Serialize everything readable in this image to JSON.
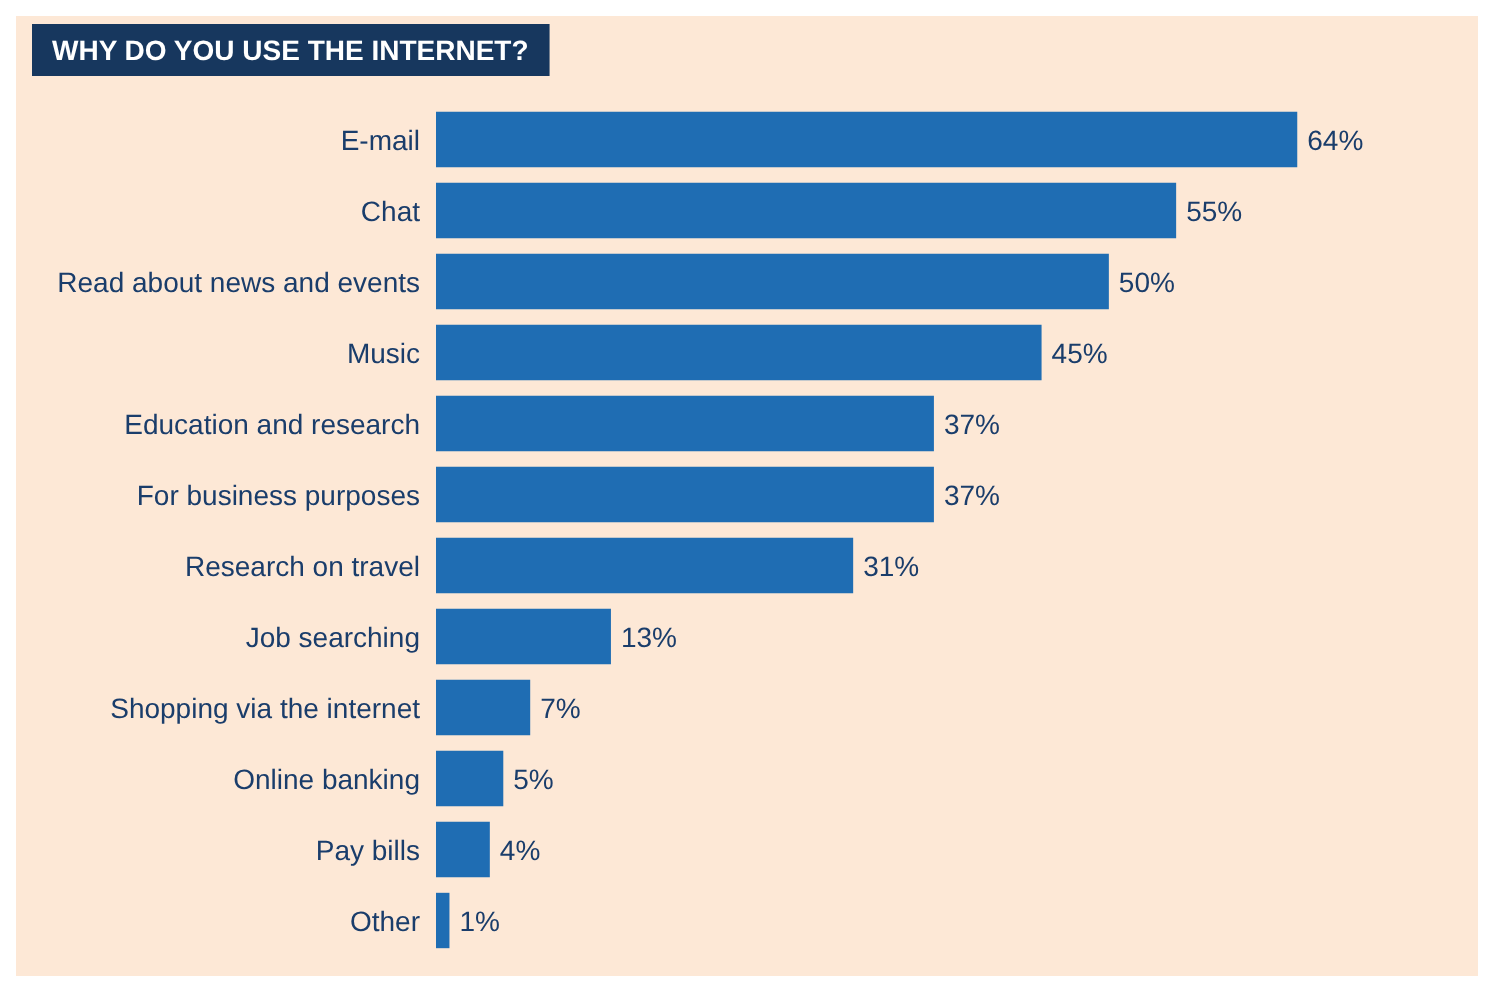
{
  "chart_data": {
    "type": "bar",
    "orientation": "horizontal",
    "title": "WHY DO YOU USE THE INTERNET?",
    "categories": [
      "E-mail",
      "Chat",
      "Read about news and events",
      "Music",
      "Education and research",
      "For business purposes",
      "Research on travel",
      "Job searching",
      "Shopping via the internet",
      "Online banking",
      "Pay bills",
      "Other"
    ],
    "values": [
      64,
      55,
      50,
      45,
      37,
      37,
      31,
      13,
      7,
      5,
      4,
      1
    ],
    "value_labels": [
      "64%",
      "55%",
      "50%",
      "45%",
      "37%",
      "37%",
      "31%",
      "13%",
      "7%",
      "5%",
      "4%",
      "1%"
    ],
    "color": "#1f6db3"
  }
}
